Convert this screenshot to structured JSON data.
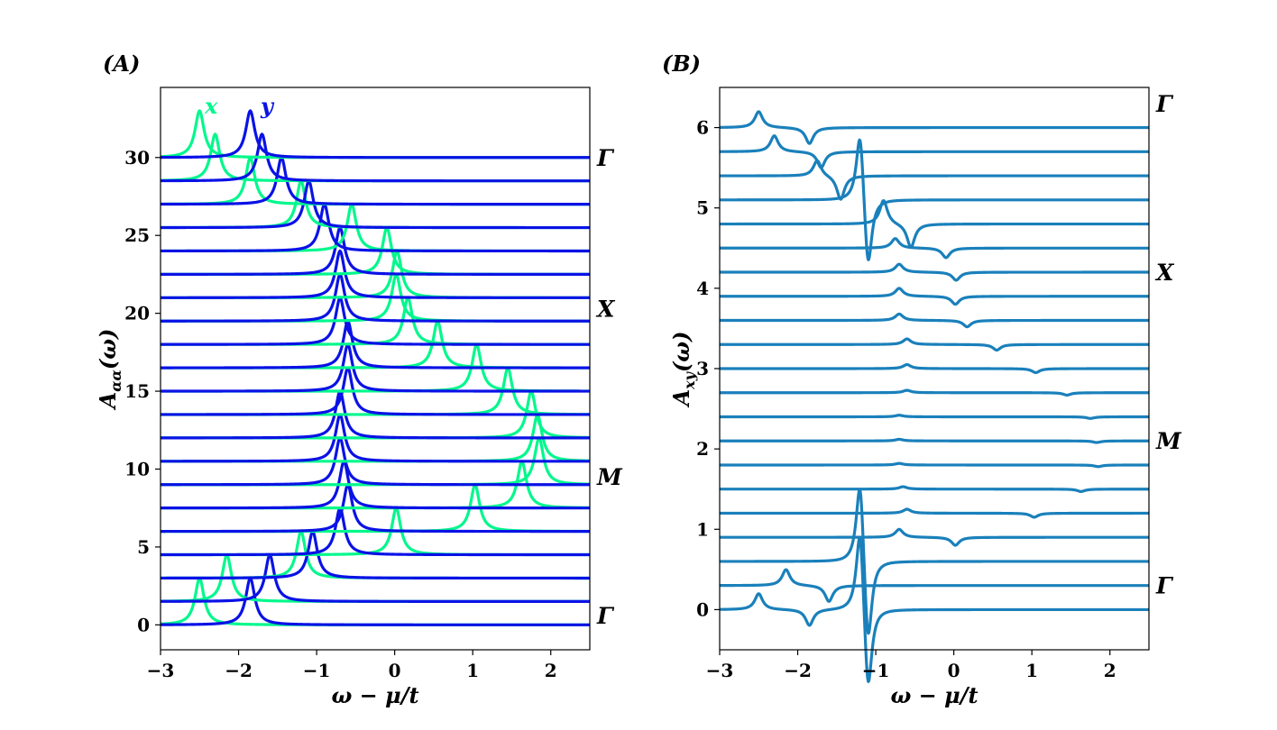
{
  "chart_data": [
    {
      "type": "line",
      "panel_label": "(A)",
      "title": "",
      "xlabel": "ω − μ/t",
      "ylabel": "A_{αα}(ω)",
      "ylabel_main": "A",
      "ylabel_sub": "αα",
      "ylabel_arg": "(ω)",
      "xlim": [
        -3,
        2.5
      ],
      "ylim": [
        -1.6,
        34.5
      ],
      "xticks": [
        -3,
        -2,
        -1,
        0,
        1,
        2
      ],
      "xtick_labels": [
        "−3",
        "−2",
        "−1",
        "0",
        "1",
        "2"
      ],
      "yticks": [
        0,
        5,
        10,
        15,
        20,
        25,
        30
      ],
      "ytick_labels": [
        "0",
        "5",
        "10",
        "15",
        "20",
        "25",
        "30"
      ],
      "offset_step": 1.5,
      "k_labels": [
        {
          "text": "Γ",
          "y": 30
        },
        {
          "text": "X",
          "y": 20.3
        },
        {
          "text": "M",
          "y": 9.5
        },
        {
          "text": "Γ",
          "y": 0.6
        }
      ],
      "legend": [
        {
          "name": "x",
          "color": "#00f88c"
        },
        {
          "name": "y",
          "color": "#0a12e6"
        }
      ],
      "series": [
        {
          "name": "x",
          "color": "#00f88c",
          "peak_height": 3.0,
          "peak_positions": [
            -2.5,
            -2.15,
            -1.2,
            0.02,
            1.03,
            1.63,
            1.85,
            1.83,
            1.75,
            1.45,
            1.05,
            0.55,
            0.17,
            0.02,
            0.03,
            -0.1,
            -0.55,
            -1.2,
            -1.85,
            -2.3,
            -2.5
          ]
        },
        {
          "name": "y",
          "color": "#0a12e6",
          "peak_height": 3.0,
          "peak_positions": [
            -1.85,
            -1.6,
            -1.05,
            -0.7,
            -0.6,
            -0.65,
            -0.7,
            -0.7,
            -0.7,
            -0.6,
            -0.6,
            -0.6,
            -0.7,
            -0.7,
            -0.7,
            -0.7,
            -0.9,
            -1.1,
            -1.45,
            -1.7,
            -1.85
          ]
        }
      ]
    },
    {
      "type": "line",
      "panel_label": "(B)",
      "title": "",
      "xlabel": "ω − μ/t",
      "ylabel": "A_{xy}(ω)",
      "ylabel_main": "A",
      "ylabel_sub": "xy",
      "ylabel_arg": "(ω)",
      "xlim": [
        -3,
        2.5
      ],
      "ylim": [
        -0.5,
        6.5
      ],
      "xticks": [
        -3,
        -2,
        -1,
        0,
        1,
        2
      ],
      "xtick_labels": [
        "−3",
        "−2",
        "−1",
        "0",
        "1",
        "2"
      ],
      "yticks": [
        0,
        1,
        2,
        3,
        4,
        5,
        6
      ],
      "ytick_labels": [
        "0",
        "1",
        "2",
        "3",
        "4",
        "5",
        "6"
      ],
      "offset_step": 0.3,
      "k_labels": [
        {
          "text": "Γ",
          "y": 6.3
        },
        {
          "text": "X",
          "y": 4.2
        },
        {
          "text": "M",
          "y": 2.1
        },
        {
          "text": "Γ",
          "y": 0.3
        }
      ],
      "series_color": "#1a80bb",
      "features": [
        [
          [
            -2.5,
            0.2
          ],
          [
            -1.85,
            -0.2
          ],
          [
            -1.2,
            1.2
          ],
          [
            -1.1,
            -1.2
          ]
        ],
        [
          [
            -2.15,
            0.2
          ],
          [
            -1.6,
            -0.2
          ]
        ],
        [
          [
            -1.2,
            1.2
          ],
          [
            -1.1,
            -1.2
          ]
        ],
        [
          [
            -0.7,
            0.1
          ],
          [
            0.02,
            -0.1
          ]
        ],
        [
          [
            -0.6,
            0.05
          ],
          [
            1.03,
            -0.05
          ]
        ],
        [
          [
            -0.65,
            0.03
          ],
          [
            1.63,
            -0.03
          ]
        ],
        [
          [
            -0.7,
            0.02
          ],
          [
            1.85,
            -0.02
          ]
        ],
        [
          [
            -0.7,
            0.02
          ],
          [
            1.83,
            -0.02
          ]
        ],
        [
          [
            -0.7,
            0.02
          ],
          [
            1.75,
            -0.02
          ]
        ],
        [
          [
            -0.6,
            0.03
          ],
          [
            1.45,
            -0.03
          ]
        ],
        [
          [
            -0.6,
            0.05
          ],
          [
            1.05,
            -0.05
          ]
        ],
        [
          [
            -0.6,
            0.07
          ],
          [
            0.55,
            -0.07
          ]
        ],
        [
          [
            -0.7,
            0.08
          ],
          [
            0.17,
            -0.08
          ]
        ],
        [
          [
            -0.7,
            0.1
          ],
          [
            0.02,
            -0.1
          ]
        ],
        [
          [
            -0.7,
            0.1
          ],
          [
            0.03,
            -0.1
          ]
        ],
        [
          [
            -0.75,
            0.12
          ],
          [
            -0.1,
            -0.12
          ]
        ],
        [
          [
            -0.9,
            0.3
          ],
          [
            -0.55,
            -0.3
          ]
        ],
        [
          [
            -1.2,
            1.0
          ],
          [
            -1.1,
            -1.0
          ]
        ],
        [
          [
            -1.75,
            0.2
          ],
          [
            -1.45,
            -0.3
          ]
        ],
        [
          [
            -2.3,
            0.2
          ],
          [
            -1.7,
            -0.2
          ]
        ],
        [
          [
            -2.5,
            0.2
          ],
          [
            -1.85,
            -0.2
          ]
        ]
      ]
    }
  ]
}
